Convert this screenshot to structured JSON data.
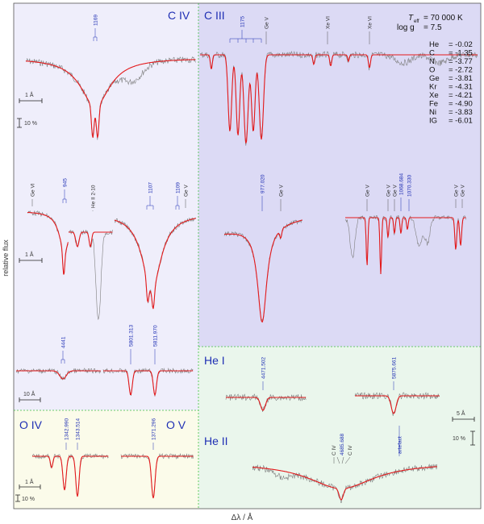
{
  "chart_data": {
    "type": "line",
    "xlabel": "Δλ / Å",
    "ylabel": "relative flux",
    "params": {
      "teff_label": "T",
      "teff_sub": "eff",
      "teff_value": "= 70 000 K",
      "logg_label": "log g",
      "logg_value": "= 7.5"
    },
    "abundances": [
      {
        "el": "He",
        "val": "= -0.02"
      },
      {
        "el": "C",
        "val": "= -1.35"
      },
      {
        "el": "N",
        "val": "= -3.77"
      },
      {
        "el": "O",
        "val": "= -2.72"
      },
      {
        "el": "Ge",
        "val": "= -3.81"
      },
      {
        "el": "Kr",
        "val": "= -4.31"
      },
      {
        "el": "Xe",
        "val": "= -4.21"
      },
      {
        "el": "Fe",
        "val": "= -4.90"
      },
      {
        "el": "Ni",
        "val": "= -3.83"
      },
      {
        "el": "IG",
        "val": "= -6.01"
      }
    ],
    "panels": {
      "civ": "C IV",
      "ciii": "C III",
      "oiv": "O IV",
      "ov": "O V",
      "hei": "He I",
      "heii": "He II"
    },
    "scale_bars": {
      "one_a": "1 Å",
      "ten_a": "10 Å",
      "five_a": "5 Å",
      "ten_pct": "10 %"
    },
    "line_ids": {
      "c1169": "1169",
      "c1175": "1175",
      "gev_1": "Ge V",
      "xevi_1": "Xe VI",
      "xevi_2": "Xe VI",
      "gevi": "Ge VI",
      "c945": "945",
      "heii_2_10": "He II 2-10",
      "c1107": "1107",
      "c1109": "1109",
      "gev_2": "Ge V",
      "c977": "977.020",
      "gev_3": "Ge V",
      "gev_4": "Ge V",
      "gev_5": "Ge V",
      "gev_6": "Ge V",
      "c1068": "1068.684",
      "c1070": "1070.330",
      "gev_7": "Ge V",
      "gev_8": "Ge V",
      "c4441": "4441",
      "c5801": "5801.313",
      "c5811": "5811.970",
      "o1342": "1342.990",
      "o1343": "1343.514",
      "o1371": "1371.296",
      "he4471": "4471.502",
      "he5875": "5875.661",
      "civ_a": "C IV",
      "civ_b": "C IV",
      "civ_c": "4685.688",
      "artefact": "artefact"
    },
    "series": [
      {
        "name": "observation",
        "color": "#808080"
      },
      {
        "name": "model",
        "color": "#e41a1c"
      }
    ]
  },
  "colors": {
    "civ_bg": "#efeefb",
    "ciii_bg": "#dcdaf5",
    "o_bg": "#fbfbea",
    "he_bg": "#eaf6ec",
    "divider": "#3fbf3f",
    "obs": "#7f7f7f",
    "model": "#e41a1c",
    "label_blue": "#1f2fb4"
  }
}
